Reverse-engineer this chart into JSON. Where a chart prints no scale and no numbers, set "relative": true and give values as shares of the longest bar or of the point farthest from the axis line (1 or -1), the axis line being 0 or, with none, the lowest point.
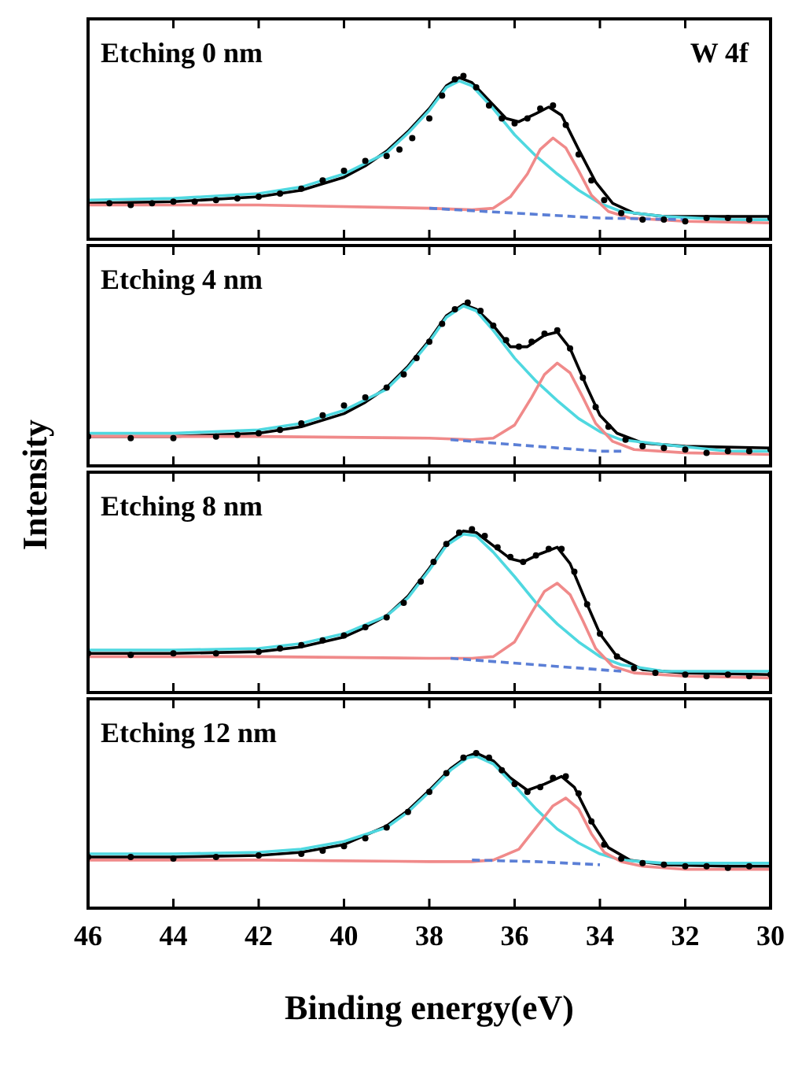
{
  "chart_data": [
    {
      "type": "line",
      "title": "Etching 0 nm",
      "annotations": [
        "W 4f"
      ],
      "ylabel": "Intensity",
      "relative": true,
      "xlim": [
        46,
        30
      ],
      "xticks": [
        46,
        44,
        42,
        40,
        38,
        36,
        34,
        32,
        30
      ],
      "tick_labels": false,
      "grid": false,
      "legend": false,
      "series": [
        {
          "type": "scatter",
          "marker": "circle",
          "color": "#000000",
          "x": [
            45.5,
            45,
            44.5,
            44,
            43.5,
            43,
            42.5,
            42,
            41.5,
            41,
            40.5,
            40,
            39.5,
            39,
            38.7,
            38.4,
            38,
            37.7,
            37.4,
            37.2,
            36.9,
            36.6,
            36.3,
            36,
            35.7,
            35.4,
            35.1,
            34.8,
            34.5,
            34.2,
            33.9,
            33.5,
            33,
            32.5,
            32,
            31.5,
            31,
            30.5,
            30
          ],
          "values": [
            0.22,
            0.21,
            0.22,
            0.23,
            0.23,
            0.24,
            0.25,
            0.26,
            0.28,
            0.31,
            0.36,
            0.42,
            0.48,
            0.51,
            0.55,
            0.62,
            0.74,
            0.88,
            0.98,
            1.0,
            0.93,
            0.82,
            0.74,
            0.71,
            0.74,
            0.8,
            0.82,
            0.7,
            0.52,
            0.36,
            0.24,
            0.16,
            0.12,
            0.12,
            0.11,
            0.13,
            0.13,
            0.12,
            0.13
          ]
        },
        {
          "type": "line",
          "color": "#000000",
          "x": [
            46,
            44,
            42,
            41,
            40,
            39.5,
            39,
            38.5,
            38,
            37.6,
            37.3,
            37,
            36.6,
            36.2,
            35.9,
            35.5,
            35.2,
            34.9,
            34.5,
            34.1,
            33.7,
            33.2,
            32.5,
            31,
            30
          ],
          "values": [
            0.22,
            0.23,
            0.26,
            0.3,
            0.38,
            0.45,
            0.54,
            0.66,
            0.8,
            0.94,
            0.99,
            0.96,
            0.85,
            0.74,
            0.72,
            0.77,
            0.81,
            0.76,
            0.55,
            0.35,
            0.22,
            0.16,
            0.14,
            0.14,
            0.14
          ]
        },
        {
          "type": "line",
          "color": "#4fd8e0",
          "x": [
            46,
            44,
            42,
            41,
            40,
            39,
            38.5,
            38,
            37.6,
            37.3,
            37,
            36.5,
            36,
            35.5,
            35,
            34.5,
            34,
            33.5,
            32.5,
            31,
            30
          ],
          "values": [
            0.24,
            0.25,
            0.28,
            0.32,
            0.4,
            0.53,
            0.65,
            0.79,
            0.93,
            0.97,
            0.94,
            0.8,
            0.64,
            0.51,
            0.4,
            0.3,
            0.22,
            0.17,
            0.14,
            0.12,
            0.12
          ]
        },
        {
          "type": "line",
          "color": "#f08a8a",
          "x": [
            46,
            42,
            38,
            37,
            36.5,
            36.1,
            35.7,
            35.4,
            35.1,
            34.8,
            34.5,
            34.2,
            33.8,
            33.3,
            32,
            30
          ],
          "values": [
            0.21,
            0.21,
            0.19,
            0.18,
            0.19,
            0.26,
            0.4,
            0.55,
            0.62,
            0.56,
            0.42,
            0.27,
            0.17,
            0.13,
            0.11,
            0.1
          ]
        },
        {
          "type": "line",
          "line_style": "dashed",
          "color": "#5b7fd6",
          "x": [
            38,
            34,
            32
          ],
          "values": [
            0.19,
            0.13,
            0.12
          ]
        }
      ]
    },
    {
      "type": "line",
      "title": "Etching 4 nm",
      "relative": true,
      "xlim": [
        46,
        30
      ],
      "xticks": [
        46,
        44,
        42,
        40,
        38,
        36,
        34,
        32,
        30
      ],
      "tick_labels": false,
      "grid": false,
      "legend": false,
      "series": [
        {
          "type": "scatter",
          "marker": "circle",
          "color": "#000000",
          "x": [
            46,
            45,
            44,
            43,
            42.5,
            42,
            41.5,
            41,
            40.5,
            40,
            39.5,
            39,
            38.6,
            38.3,
            38,
            37.7,
            37.4,
            37.1,
            36.8,
            36.5,
            36.2,
            35.9,
            35.6,
            35.3,
            35,
            34.7,
            34.4,
            34.1,
            33.8,
            33.4,
            33,
            32.5,
            32,
            31.5,
            31,
            30.5,
            30
          ],
          "values": [
            0.18,
            0.17,
            0.17,
            0.18,
            0.19,
            0.2,
            0.22,
            0.26,
            0.31,
            0.37,
            0.42,
            0.48,
            0.56,
            0.66,
            0.76,
            0.87,
            0.96,
            1.0,
            0.95,
            0.86,
            0.77,
            0.73,
            0.76,
            0.81,
            0.83,
            0.72,
            0.54,
            0.36,
            0.24,
            0.16,
            0.12,
            0.11,
            0.1,
            0.08,
            0.09,
            0.09,
            0.1
          ]
        },
        {
          "type": "line",
          "color": "#000000",
          "x": [
            46,
            44,
            42,
            41,
            40,
            39.5,
            39,
            38.5,
            38,
            37.6,
            37.2,
            36.9,
            36.5,
            36.1,
            35.7,
            35.3,
            35,
            34.7,
            34.3,
            34,
            33.6,
            33,
            32,
            30
          ],
          "values": [
            0.18,
            0.18,
            0.2,
            0.24,
            0.32,
            0.39,
            0.48,
            0.61,
            0.77,
            0.92,
            0.99,
            0.96,
            0.86,
            0.73,
            0.73,
            0.8,
            0.82,
            0.72,
            0.48,
            0.31,
            0.2,
            0.14,
            0.12,
            0.11
          ]
        },
        {
          "type": "line",
          "color": "#4fd8e0",
          "x": [
            46,
            44,
            42,
            41,
            40,
            39,
            38.5,
            38,
            37.6,
            37.2,
            36.9,
            36.5,
            36,
            35.5,
            35,
            34.5,
            34,
            33.5,
            32.5,
            31,
            30
          ],
          "values": [
            0.2,
            0.2,
            0.22,
            0.26,
            0.34,
            0.47,
            0.6,
            0.76,
            0.91,
            0.98,
            0.95,
            0.83,
            0.66,
            0.52,
            0.4,
            0.29,
            0.21,
            0.16,
            0.13,
            0.09,
            0.09
          ]
        },
        {
          "type": "line",
          "color": "#f08a8a",
          "x": [
            46,
            42,
            38,
            37,
            36.5,
            36,
            35.6,
            35.3,
            35,
            34.7,
            34.4,
            34.1,
            33.7,
            33.2,
            32,
            30
          ],
          "values": [
            0.18,
            0.18,
            0.17,
            0.16,
            0.17,
            0.25,
            0.42,
            0.56,
            0.63,
            0.57,
            0.42,
            0.26,
            0.15,
            0.1,
            0.08,
            0.07
          ]
        },
        {
          "type": "line",
          "line_style": "dashed",
          "color": "#5b7fd6",
          "x": [
            37.5,
            34,
            33.5
          ],
          "values": [
            0.16,
            0.09,
            0.09
          ]
        }
      ]
    },
    {
      "type": "line",
      "title": "Etching 8 nm",
      "relative": true,
      "xlim": [
        46,
        30
      ],
      "xticks": [
        46,
        44,
        42,
        40,
        38,
        36,
        34,
        32,
        30
      ],
      "tick_labels": false,
      "grid": false,
      "legend": false,
      "series": [
        {
          "type": "scatter",
          "marker": "circle",
          "color": "#000000",
          "x": [
            46,
            45,
            44,
            43,
            42,
            41.5,
            41,
            40.5,
            40,
            39.5,
            39,
            38.6,
            38.2,
            37.9,
            37.6,
            37.3,
            37,
            36.7,
            36.4,
            36.1,
            35.8,
            35.5,
            35.2,
            34.9,
            34.6,
            34.3,
            34,
            33.6,
            33.2,
            32.7,
            32,
            31.5,
            31,
            30.5,
            30
          ],
          "values": [
            0.24,
            0.23,
            0.24,
            0.24,
            0.25,
            0.27,
            0.29,
            0.32,
            0.35,
            0.4,
            0.46,
            0.55,
            0.68,
            0.8,
            0.91,
            0.98,
            1.0,
            0.96,
            0.89,
            0.83,
            0.8,
            0.84,
            0.88,
            0.88,
            0.74,
            0.54,
            0.36,
            0.22,
            0.15,
            0.12,
            0.11,
            0.1,
            0.11,
            0.1,
            0.11
          ]
        },
        {
          "type": "line",
          "color": "#000000",
          "x": [
            46,
            44,
            42,
            41,
            40,
            39.5,
            39,
            38.5,
            38,
            37.6,
            37.2,
            36.9,
            36.5,
            36.1,
            35.8,
            35.4,
            35,
            34.7,
            34.3,
            34,
            33.6,
            33,
            32,
            30
          ],
          "values": [
            0.24,
            0.24,
            0.25,
            0.28,
            0.34,
            0.4,
            0.47,
            0.59,
            0.76,
            0.91,
            0.99,
            0.98,
            0.9,
            0.82,
            0.8,
            0.85,
            0.89,
            0.79,
            0.54,
            0.36,
            0.22,
            0.14,
            0.12,
            0.11
          ]
        },
        {
          "type": "line",
          "color": "#4fd8e0",
          "x": [
            46,
            44,
            42,
            41,
            40,
            39,
            38.5,
            38,
            37.6,
            37.2,
            36.9,
            36.5,
            36,
            35.5,
            35,
            34.5,
            34,
            33.5,
            32.5,
            31,
            30
          ],
          "values": [
            0.26,
            0.26,
            0.27,
            0.3,
            0.36,
            0.47,
            0.58,
            0.75,
            0.9,
            0.97,
            0.96,
            0.86,
            0.71,
            0.55,
            0.42,
            0.31,
            0.22,
            0.17,
            0.13,
            0.13,
            0.13
          ]
        },
        {
          "type": "line",
          "color": "#f08a8a",
          "x": [
            46,
            42,
            38,
            37,
            36.5,
            36,
            35.6,
            35.3,
            35,
            34.7,
            34.4,
            34.1,
            33.7,
            33.2,
            32,
            30
          ],
          "values": [
            0.22,
            0.22,
            0.21,
            0.21,
            0.22,
            0.31,
            0.49,
            0.62,
            0.67,
            0.6,
            0.44,
            0.27,
            0.16,
            0.12,
            0.1,
            0.09
          ]
        },
        {
          "type": "line",
          "line_style": "dashed",
          "color": "#5b7fd6",
          "x": [
            37.5,
            34,
            33.5
          ],
          "values": [
            0.21,
            0.14,
            0.13
          ]
        }
      ]
    },
    {
      "type": "line",
      "title": "Etching 12 nm",
      "xlabel": "Binding energy(eV)",
      "relative": true,
      "xlim": [
        46,
        30
      ],
      "xticks": [
        46,
        44,
        42,
        40,
        38,
        36,
        34,
        32,
        30
      ],
      "tick_labels": "x",
      "grid": false,
      "legend": false,
      "series": [
        {
          "type": "scatter",
          "marker": "circle",
          "color": "#000000",
          "x": [
            46,
            45,
            44,
            43,
            42,
            41,
            40.5,
            40,
            39.5,
            39,
            38.5,
            38,
            37.6,
            37.2,
            36.9,
            36.6,
            36.3,
            36,
            35.7,
            35.4,
            35.1,
            34.8,
            34.5,
            34.2,
            33.9,
            33.5,
            33,
            32.5,
            32,
            31.5,
            31,
            30.5
          ],
          "values": [
            0.33,
            0.33,
            0.32,
            0.33,
            0.34,
            0.35,
            0.37,
            0.4,
            0.45,
            0.52,
            0.62,
            0.75,
            0.87,
            0.97,
            1.0,
            0.97,
            0.89,
            0.8,
            0.75,
            0.78,
            0.84,
            0.85,
            0.74,
            0.56,
            0.41,
            0.32,
            0.29,
            0.28,
            0.27,
            0.27,
            0.26,
            0.27
          ]
        },
        {
          "type": "line",
          "color": "#000000",
          "x": [
            46,
            44,
            42,
            41,
            40,
            39,
            38.5,
            38,
            37.5,
            37.1,
            36.9,
            36.5,
            36.1,
            35.7,
            35.3,
            34.9,
            34.6,
            34.2,
            33.8,
            33.3,
            32.5,
            31,
            30
          ],
          "values": [
            0.33,
            0.33,
            0.34,
            0.36,
            0.41,
            0.53,
            0.63,
            0.76,
            0.9,
            0.98,
            1.0,
            0.95,
            0.84,
            0.76,
            0.8,
            0.85,
            0.78,
            0.56,
            0.39,
            0.31,
            0.28,
            0.27,
            0.27
          ]
        },
        {
          "type": "line",
          "color": "#4fd8e0",
          "x": [
            46,
            44,
            42,
            41,
            40,
            39,
            38.5,
            38,
            37.5,
            37.1,
            36.9,
            36.5,
            36,
            35.5,
            35,
            34.5,
            34,
            33.5,
            32.5,
            31,
            30
          ],
          "values": [
            0.35,
            0.35,
            0.36,
            0.38,
            0.43,
            0.52,
            0.62,
            0.75,
            0.89,
            0.97,
            0.98,
            0.93,
            0.79,
            0.64,
            0.51,
            0.42,
            0.35,
            0.31,
            0.29,
            0.29,
            0.29
          ]
        },
        {
          "type": "line",
          "color": "#f08a8a",
          "x": [
            46,
            42,
            38,
            37,
            36.5,
            35.9,
            35.5,
            35.1,
            34.8,
            34.5,
            34.2,
            33.9,
            33.5,
            33,
            32,
            30
          ],
          "values": [
            0.31,
            0.31,
            0.3,
            0.3,
            0.31,
            0.38,
            0.52,
            0.66,
            0.71,
            0.64,
            0.48,
            0.36,
            0.3,
            0.27,
            0.25,
            0.25
          ]
        },
        {
          "type": "line",
          "line_style": "dashed",
          "color": "#5b7fd6",
          "x": [
            37,
            35.5,
            34
          ],
          "values": [
            0.31,
            0.3,
            0.28
          ]
        }
      ]
    }
  ]
}
